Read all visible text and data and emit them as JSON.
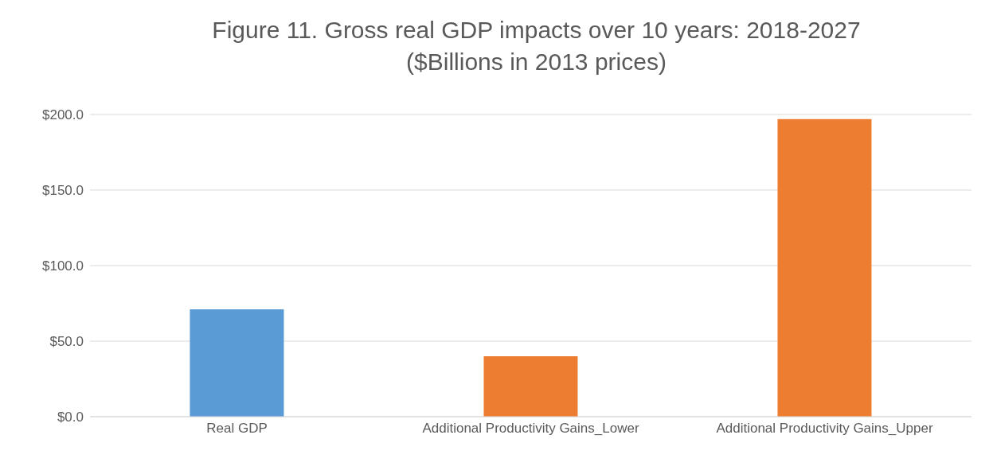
{
  "chart_data": {
    "type": "bar",
    "title": "Figure 11. Gross real GDP impacts over 10 years: 2018-2027\n($Billions in 2013 prices)",
    "categories": [
      "Real GDP",
      "Additional Productivity Gains_Lower",
      "Additional Productivity Gains_Upper"
    ],
    "values": [
      71,
      40,
      197
    ],
    "colors": [
      "#5b9bd5",
      "#ed7d31",
      "#ed7d31"
    ],
    "ylim": [
      0,
      200
    ],
    "yticks": [
      {
        "value": 0,
        "label": "$0.0"
      },
      {
        "value": 50,
        "label": "$50.0"
      },
      {
        "value": 100,
        "label": "$100.0"
      },
      {
        "value": 150,
        "label": "$150.0"
      },
      {
        "value": 200,
        "label": "$200.0"
      }
    ],
    "grid": "y",
    "legend": false
  }
}
